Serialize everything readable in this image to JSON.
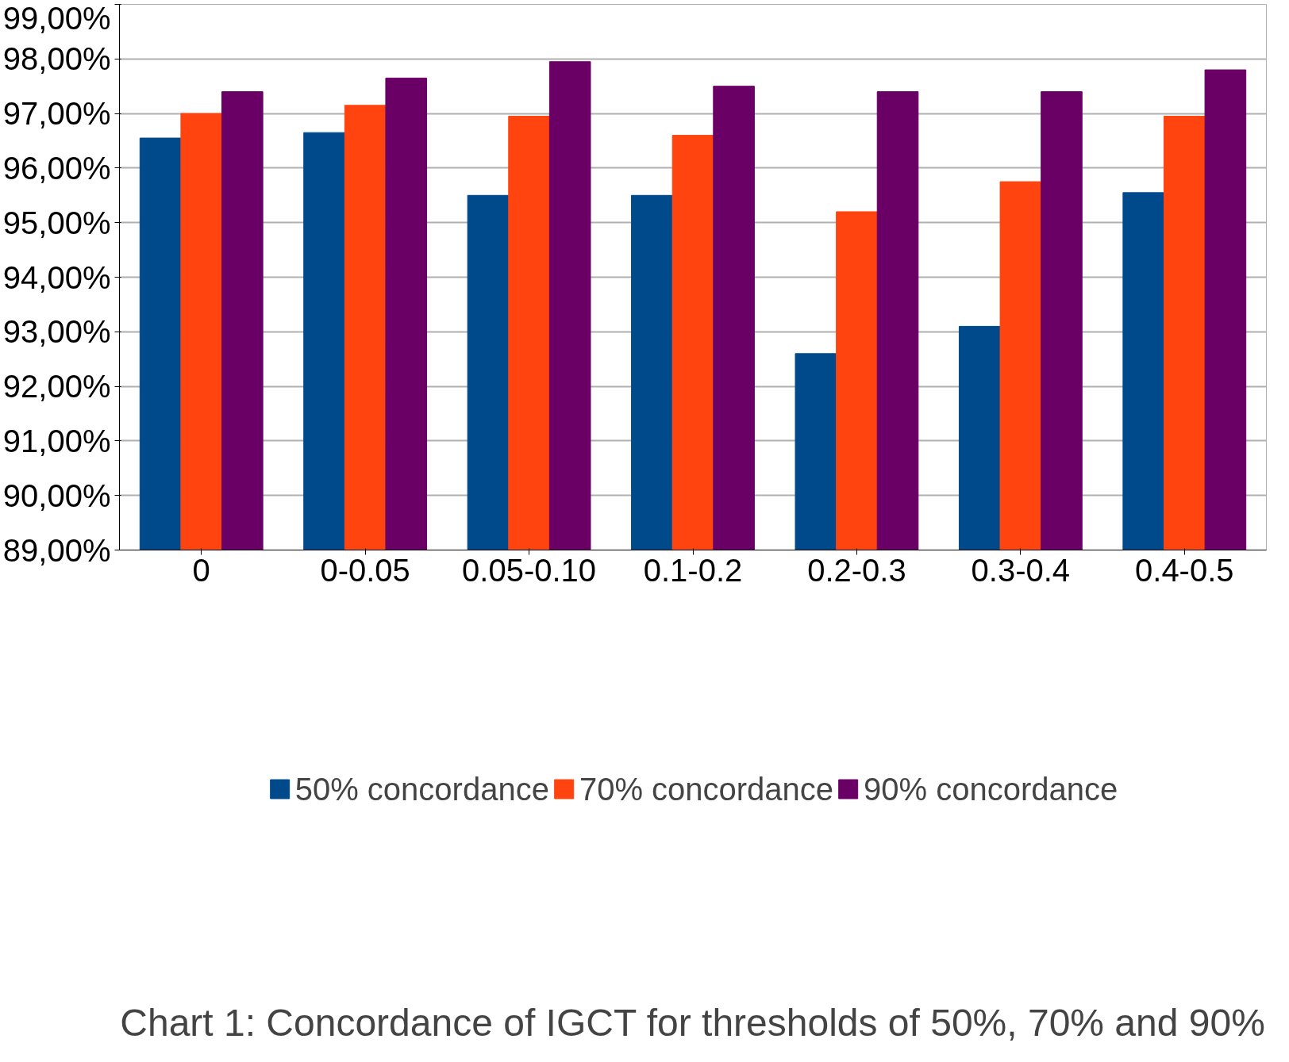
{
  "chart_data": {
    "type": "bar",
    "title": "Chart 1: Concordance of IGCT for thresholds of 50%, 70% and 90%",
    "categories": [
      "0",
      "0-0.05",
      "0.05-0.10",
      "0.1-0.2",
      "0.2-0.3",
      "0.3-0.4",
      "0.4-0.5"
    ],
    "series": [
      {
        "name": "50% concordance",
        "color": "#004a8c",
        "values": [
          96.55,
          96.65,
          95.5,
          95.5,
          92.6,
          93.1,
          95.55
        ]
      },
      {
        "name": "70% concordance",
        "color": "#ff4410",
        "values": [
          97.0,
          97.15,
          96.95,
          96.6,
          95.2,
          95.75,
          96.95
        ]
      },
      {
        "name": "90% concordance",
        "color": "#6a0066",
        "values": [
          97.4,
          97.65,
          97.95,
          97.5,
          97.4,
          97.4,
          97.8
        ]
      }
    ],
    "ylim": [
      89,
      99
    ],
    "yticks": [
      {
        "value": 89,
        "label": "89,00%"
      },
      {
        "value": 90,
        "label": "90,00%"
      },
      {
        "value": 91,
        "label": "91,00%"
      },
      {
        "value": 92,
        "label": "92,00%"
      },
      {
        "value": 93,
        "label": "93,00%"
      },
      {
        "value": 94,
        "label": "94,00%"
      },
      {
        "value": 95,
        "label": "95,00%"
      },
      {
        "value": 96,
        "label": "96,00%"
      },
      {
        "value": 97,
        "label": "97,00%"
      },
      {
        "value": 98,
        "label": "98,00%"
      },
      {
        "value": 99,
        "label": "99,00%"
      }
    ],
    "grid": "y",
    "legend": "bottom"
  }
}
